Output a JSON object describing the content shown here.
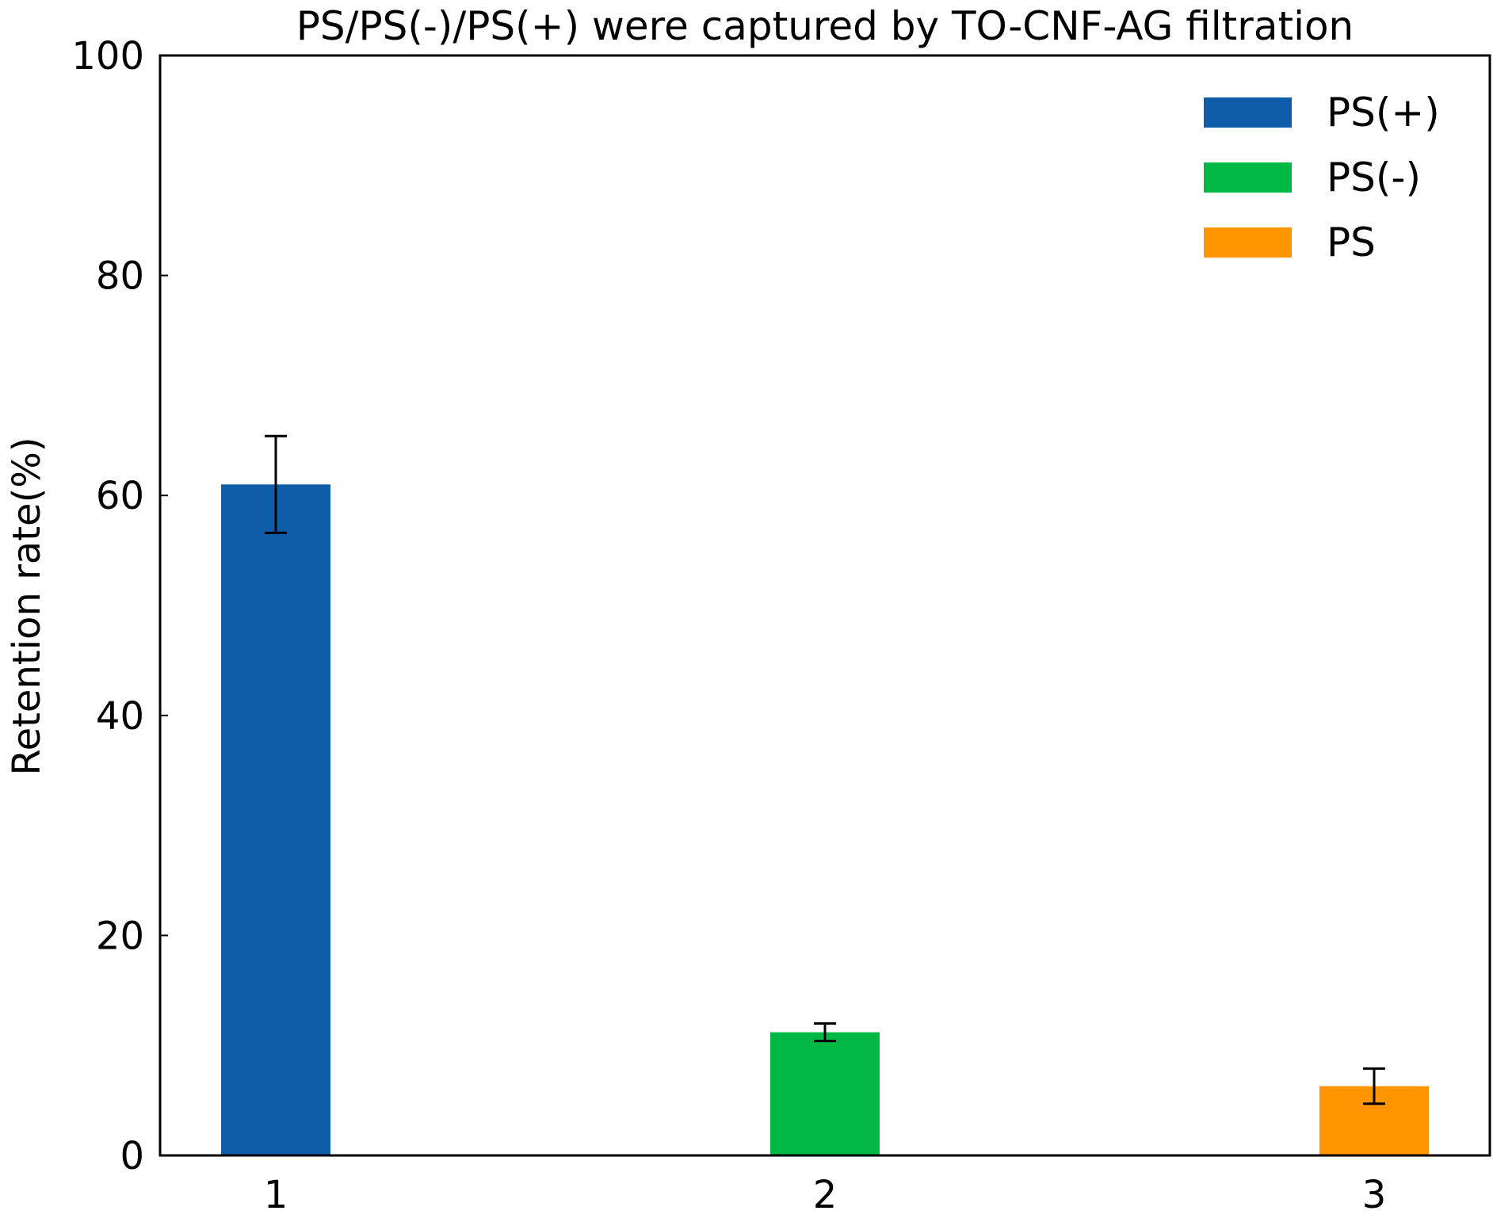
{
  "chart_data": {
    "type": "bar",
    "title": "PS/PS(-)/PS(+) were captured by TO-CNF-AG filtration",
    "xlabel": "",
    "ylabel": "Retention rate(%)",
    "ylim": [
      0,
      100
    ],
    "yticks": [
      0,
      20,
      40,
      60,
      80,
      100
    ],
    "categories": [
      "1",
      "2",
      "3"
    ],
    "series": [
      {
        "name": "PS(+)",
        "category": "1",
        "value": 61,
        "error": 4.4,
        "color": "#0f5ca8"
      },
      {
        "name": "PS(-)",
        "category": "2",
        "value": 11.2,
        "error": 0.8,
        "color": "#00b843"
      },
      {
        "name": "PS",
        "category": "3",
        "value": 6.3,
        "error": 1.6,
        "color": "#ff9500"
      }
    ],
    "grid": false,
    "legend": "top-right",
    "error_bars": true
  }
}
